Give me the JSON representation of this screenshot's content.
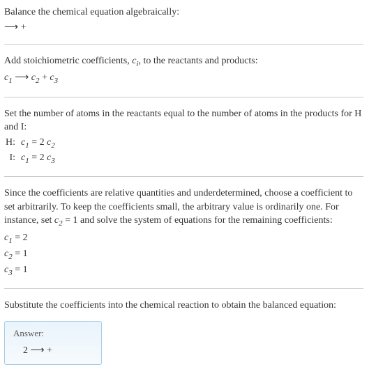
{
  "section1": {
    "title": "Balance the chemical equation algebraically:",
    "reaction": " ⟶  + "
  },
  "section2": {
    "title_a": "Add stoichiometric coefficients, ",
    "title_ci": "c",
    "title_ci_sub": "i",
    "title_b": ", to the reactants and products:",
    "eq_c1": "c",
    "eq_c1_sub": "1",
    "eq_arrow": " ⟶ ",
    "eq_c2": "c",
    "eq_c2_sub": "2",
    "eq_plus": " + ",
    "eq_c3": "c",
    "eq_c3_sub": "3"
  },
  "section3": {
    "title": "Set the number of atoms in the reactants equal to the number of atoms in the products for H and I:",
    "rows": [
      {
        "label": "H: ",
        "c1": "c",
        "c1s": "1",
        "eq": " = 2 ",
        "c2": "c",
        "c2s": "2"
      },
      {
        "label": "I: ",
        "c1": "c",
        "c1s": "1",
        "eq": " = 2 ",
        "c2": "c",
        "c2s": "3"
      }
    ]
  },
  "section4": {
    "para_a": "Since the coefficients are relative quantities and underdetermined, choose a coefficient to set arbitrarily. To keep the coefficients small, the arbitrary value is ordinarily one. For instance, set ",
    "para_c2": "c",
    "para_c2s": "2",
    "para_b": " = 1 and solve the system of equations for the remaining coefficients:",
    "coeffs": [
      {
        "c": "c",
        "s": "1",
        "v": " = 2"
      },
      {
        "c": "c",
        "s": "2",
        "v": " = 1"
      },
      {
        "c": "c",
        "s": "3",
        "v": " = 1"
      }
    ]
  },
  "section5": {
    "title": "Substitute the coefficients into the chemical reaction to obtain the balanced equation:"
  },
  "answer": {
    "label": "Answer:",
    "content": "2  ⟶  + "
  }
}
